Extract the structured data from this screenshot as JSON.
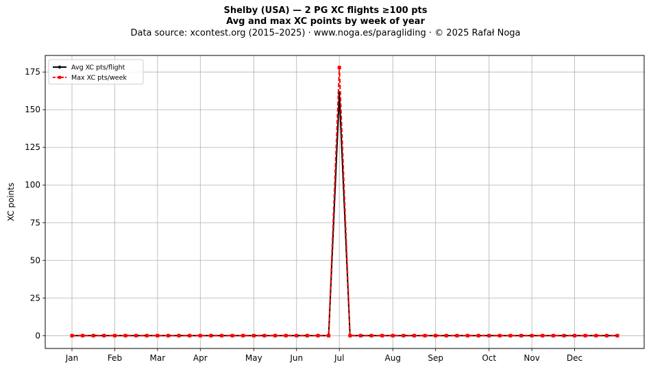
{
  "chart_data": {
    "type": "line",
    "title": "Shelby (USA)  —  2 PG XC flights ≥100 pts",
    "subtitle": "Avg and max XC points by week of year",
    "source_line": "Data source: xcontest.org (2015–2025)  ·  www.noga.es/paragliding  ·  © 2025 Rafał Noga",
    "xlabel": "",
    "ylabel": "XC points",
    "x_tick_labels": [
      {
        "week": 1,
        "label": "Jan"
      },
      {
        "week": 5,
        "label": "Feb"
      },
      {
        "week": 9,
        "label": "Mar"
      },
      {
        "week": 13,
        "label": "Apr"
      },
      {
        "week": 18,
        "label": "May"
      },
      {
        "week": 22,
        "label": "Jun"
      },
      {
        "week": 26,
        "label": "Jul"
      },
      {
        "week": 31,
        "label": "Aug"
      },
      {
        "week": 35,
        "label": "Sep"
      },
      {
        "week": 40,
        "label": "Oct"
      },
      {
        "week": 44,
        "label": "Nov"
      },
      {
        "week": 48,
        "label": "Dec"
      }
    ],
    "yticks": [
      0,
      25,
      50,
      75,
      100,
      125,
      150,
      175
    ],
    "xlim": [
      -1.5,
      54.5
    ],
    "ylim": [
      -8.5,
      186
    ],
    "grid": true,
    "legend_position": "top-left",
    "x": [
      1,
      2,
      3,
      4,
      5,
      6,
      7,
      8,
      9,
      10,
      11,
      12,
      13,
      14,
      15,
      16,
      17,
      18,
      19,
      20,
      21,
      22,
      23,
      24,
      25,
      26,
      27,
      28,
      29,
      30,
      31,
      32,
      33,
      34,
      35,
      36,
      37,
      38,
      39,
      40,
      41,
      42,
      43,
      44,
      45,
      46,
      47,
      48,
      49,
      50,
      51,
      52
    ],
    "series": [
      {
        "name": "Avg XC pts/flight",
        "color": "#000000",
        "line_style": "solid",
        "marker": "circle",
        "values": [
          0,
          0,
          0,
          0,
          0,
          0,
          0,
          0,
          0,
          0,
          0,
          0,
          0,
          0,
          0,
          0,
          0,
          0,
          0,
          0,
          0,
          0,
          0,
          0,
          0,
          161,
          0,
          0,
          0,
          0,
          0,
          0,
          0,
          0,
          0,
          0,
          0,
          0,
          0,
          0,
          0,
          0,
          0,
          0,
          0,
          0,
          0,
          0,
          0,
          0,
          0,
          0
        ]
      },
      {
        "name": "Max XC pts/week",
        "color": "#ff0000",
        "line_style": "dashed",
        "marker": "square",
        "values": [
          0,
          0,
          0,
          0,
          0,
          0,
          0,
          0,
          0,
          0,
          0,
          0,
          0,
          0,
          0,
          0,
          0,
          0,
          0,
          0,
          0,
          0,
          0,
          0,
          0,
          178,
          0,
          0,
          0,
          0,
          0,
          0,
          0,
          0,
          0,
          0,
          0,
          0,
          0,
          0,
          0,
          0,
          0,
          0,
          0,
          0,
          0,
          0,
          0,
          0,
          0,
          0
        ]
      }
    ]
  }
}
